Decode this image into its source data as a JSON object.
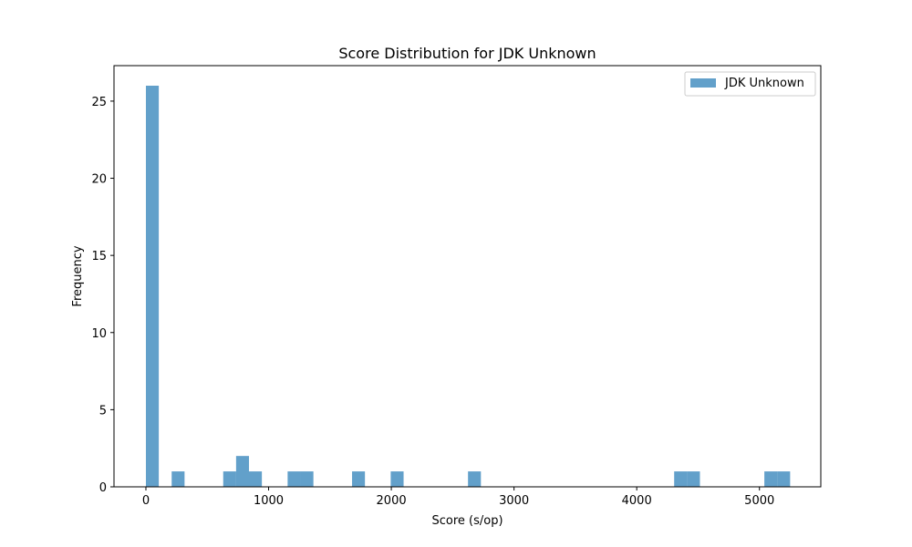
{
  "chart_data": {
    "type": "bar",
    "title": "Score Distribution for JDK Unknown",
    "xlabel": "Score (s/op)",
    "ylabel": "Frequency",
    "xlim": [
      -260,
      5500
    ],
    "ylim": [
      0,
      27.3
    ],
    "xticks": [
      0,
      1000,
      2000,
      3000,
      4000,
      5000
    ],
    "yticks": [
      0,
      5,
      10,
      15,
      20,
      25
    ],
    "legend": {
      "position": "top-right",
      "entries": [
        "JDK Unknown"
      ]
    },
    "grid": false,
    "bar_color": "#1f77b4",
    "bar_opacity": 0.7,
    "series": [
      {
        "name": "JDK Unknown",
        "bins": [
          {
            "x0": 0,
            "x1": 105,
            "count": 26
          },
          {
            "x0": 210,
            "x1": 315,
            "count": 1
          },
          {
            "x0": 630,
            "x1": 735,
            "count": 1
          },
          {
            "x0": 735,
            "x1": 840,
            "count": 2
          },
          {
            "x0": 840,
            "x1": 945,
            "count": 1
          },
          {
            "x0": 1155,
            "x1": 1260,
            "count": 1
          },
          {
            "x0": 1260,
            "x1": 1365,
            "count": 1
          },
          {
            "x0": 1680,
            "x1": 1785,
            "count": 1
          },
          {
            "x0": 1995,
            "x1": 2100,
            "count": 1
          },
          {
            "x0": 2625,
            "x1": 2730,
            "count": 1
          },
          {
            "x0": 4305,
            "x1": 4410,
            "count": 1
          },
          {
            "x0": 4410,
            "x1": 4515,
            "count": 1
          },
          {
            "x0": 5040,
            "x1": 5145,
            "count": 1
          },
          {
            "x0": 5145,
            "x1": 5250,
            "count": 1
          }
        ]
      }
    ]
  }
}
